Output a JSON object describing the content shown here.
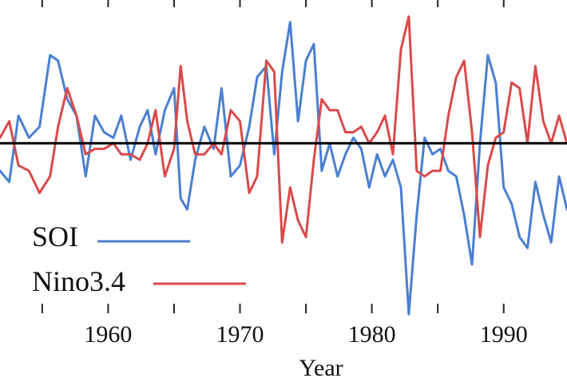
{
  "chart_data": {
    "type": "line",
    "xlabel": "Year",
    "ylabel": "",
    "xlim": [
      1951.8,
      1994.8
    ],
    "ylim": [
      -3.2,
      2.6
    ],
    "x_ticks": [
      1960,
      1970,
      1980,
      1990
    ],
    "x_tick_labels": [
      "1960",
      "1970",
      "1980",
      "1990"
    ],
    "x_minor_ticks": [
      1955,
      1965,
      1975,
      1985
    ],
    "zero_line": true,
    "grid": false,
    "legend_placement": "lower-left",
    "series": [
      {
        "name": "SOI",
        "color": "#4a7fd0",
        "x": [
          1951.8,
          1952.5,
          1953.2,
          1954.0,
          1954.8,
          1955.6,
          1956.2,
          1956.9,
          1957.6,
          1958.3,
          1959.0,
          1959.7,
          1960.4,
          1961.0,
          1961.7,
          1962.4,
          1963.0,
          1963.6,
          1964.3,
          1965.0,
          1965.5,
          1966.0,
          1966.6,
          1967.3,
          1968.0,
          1968.6,
          1969.3,
          1970.0,
          1970.7,
          1971.3,
          1972.0,
          1972.6,
          1973.2,
          1973.8,
          1974.4,
          1975.0,
          1975.6,
          1976.2,
          1976.8,
          1977.4,
          1978.0,
          1978.6,
          1979.2,
          1979.8,
          1980.4,
          1981.0,
          1981.6,
          1982.2,
          1982.8,
          1983.4,
          1984.0,
          1984.6,
          1985.2,
          1985.8,
          1986.4,
          1987.0,
          1987.6,
          1988.2,
          1988.8,
          1989.4,
          1990.0,
          1990.6,
          1991.2,
          1991.8,
          1992.4,
          1993.0,
          1993.6,
          1994.2,
          1994.8
        ],
        "values": [
          -0.5,
          -0.7,
          0.5,
          0.1,
          0.3,
          1.6,
          1.5,
          0.8,
          0.5,
          -0.6,
          0.5,
          0.2,
          0.1,
          0.5,
          -0.3,
          0.3,
          0.6,
          -0.2,
          0.6,
          1.0,
          -1.0,
          -1.2,
          -0.3,
          0.3,
          -0.1,
          1.0,
          -0.6,
          -0.4,
          0.3,
          1.2,
          1.4,
          -0.2,
          1.3,
          2.2,
          0.4,
          1.5,
          1.8,
          -0.5,
          0.0,
          -0.6,
          -0.2,
          0.1,
          -0.1,
          -0.8,
          -0.2,
          -0.6,
          -0.3,
          -0.8,
          -3.1,
          -1.3,
          0.1,
          -0.2,
          -0.1,
          -0.5,
          -0.6,
          -1.3,
          -2.2,
          0.0,
          1.6,
          1.1,
          -0.8,
          -1.1,
          -1.7,
          -1.9,
          -0.7,
          -1.3,
          -1.8,
          -0.6,
          -1.2
        ]
      },
      {
        "name": "Nino3.4",
        "color": "#d84a4a",
        "x": [
          1951.8,
          1952.5,
          1953.2,
          1954.0,
          1954.8,
          1955.6,
          1956.2,
          1956.9,
          1957.6,
          1958.3,
          1959.0,
          1959.7,
          1960.4,
          1961.0,
          1961.7,
          1962.4,
          1963.0,
          1963.6,
          1964.3,
          1965.0,
          1965.5,
          1966.0,
          1966.6,
          1967.3,
          1968.0,
          1968.6,
          1969.3,
          1970.0,
          1970.7,
          1971.3,
          1972.0,
          1972.6,
          1973.2,
          1973.8,
          1974.4,
          1975.0,
          1975.6,
          1976.2,
          1976.8,
          1977.4,
          1978.0,
          1978.6,
          1979.2,
          1979.8,
          1980.4,
          1981.0,
          1981.6,
          1982.2,
          1982.8,
          1983.4,
          1984.0,
          1984.6,
          1985.2,
          1985.8,
          1986.4,
          1987.0,
          1987.6,
          1988.2,
          1988.8,
          1989.4,
          1990.0,
          1990.6,
          1991.2,
          1991.8,
          1992.4,
          1993.0,
          1993.6,
          1994.2,
          1994.8
        ],
        "values": [
          0.1,
          0.4,
          -0.4,
          -0.5,
          -0.9,
          -0.6,
          0.3,
          1.0,
          0.5,
          -0.2,
          -0.1,
          -0.1,
          0.0,
          -0.2,
          -0.2,
          -0.3,
          0.0,
          0.6,
          -0.6,
          -0.1,
          1.4,
          0.4,
          -0.2,
          -0.2,
          0.0,
          -0.2,
          0.6,
          0.4,
          -0.9,
          -0.6,
          1.5,
          1.3,
          -1.8,
          -0.8,
          -1.4,
          -1.7,
          -0.3,
          0.8,
          0.6,
          0.6,
          0.2,
          0.2,
          0.3,
          0.0,
          0.2,
          0.5,
          -0.2,
          1.7,
          2.3,
          -0.5,
          -0.6,
          -0.5,
          -0.5,
          0.5,
          1.2,
          1.5,
          0.2,
          -1.7,
          -0.4,
          0.1,
          0.2,
          1.1,
          1.0,
          0.0,
          1.4,
          0.4,
          0.0,
          0.5,
          0.0
        ]
      }
    ]
  }
}
